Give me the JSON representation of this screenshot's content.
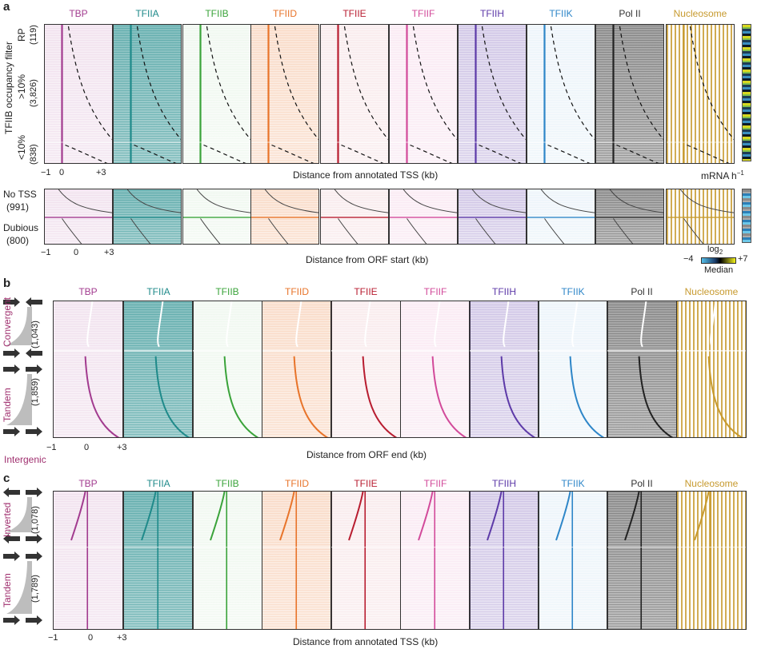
{
  "panels": {
    "a": {
      "letter": "a",
      "factors": [
        {
          "name": "TBP",
          "color": "#a23b8f"
        },
        {
          "name": "TFIIA",
          "color": "#1f8a8a"
        },
        {
          "name": "TFIIB",
          "color": "#3aa33a"
        },
        {
          "name": "TFIID",
          "color": "#e8742a"
        },
        {
          "name": "TFIIE",
          "color": "#b81d30"
        },
        {
          "name": "TFIIF",
          "color": "#d24a9a"
        },
        {
          "name": "TFIIH",
          "color": "#5d3aa8"
        },
        {
          "name": "TFIIK",
          "color": "#2e86c8"
        },
        {
          "name": "Pol II",
          "color": "#333333"
        },
        {
          "name": "Nucleosome",
          "color": "#c79a2e"
        }
      ],
      "side_title": "TFIIB occupancy filter",
      "groups_top": [
        {
          "label": "RP",
          "count": "(119)"
        },
        {
          "label": ">10%",
          "count": "(3,826)"
        },
        {
          "label": "<10%",
          "count": "(838)"
        }
      ],
      "groups_bottom": [
        {
          "label": "No TSS",
          "count": "(991)"
        },
        {
          "label": "Dubious",
          "count": "(800)"
        }
      ],
      "xticks_top": [
        "−1",
        "0",
        "+3"
      ],
      "xlabel_top": "Distance from annotated TSS (kb)",
      "xticks_bottom": [
        "−1",
        "0",
        "+3"
      ],
      "xlabel_bottom": "Distance from ORF start (kb)",
      "mrna_label": "mRNA h",
      "mrna_sup": "−1",
      "colorbar_title": "log",
      "colorbar_sub": "2",
      "colorbar_min": "−4",
      "colorbar_max": "+7",
      "colorbar_caption": "Median"
    },
    "b": {
      "letter": "b",
      "groups": [
        {
          "label": "Convergent",
          "count": "(1,043)"
        },
        {
          "label": "Tandem",
          "count": "(1,859)"
        }
      ],
      "intergenic": "Intergenic",
      "xticks": [
        "−1",
        "0",
        "+3"
      ],
      "xlabel": "Distance from ORF end (kb)"
    },
    "c": {
      "letter": "c",
      "groups": [
        {
          "label": "Inverted",
          "count": "(1,078)"
        },
        {
          "label": "Tandem",
          "count": "(1,789)"
        }
      ],
      "xticks": [
        "−1",
        "0",
        "+3"
      ],
      "xlabel": "Distance from annotated TSS (kb)"
    }
  },
  "chart_data": [
    {
      "type": "heatmap",
      "title": "",
      "xlabel": "Distance from annotated TSS (kb)",
      "x_ticks": [
        "−1",
        "0",
        "+3"
      ],
      "series": [
        {
          "name": "TBP"
        },
        {
          "name": "TFIIA"
        },
        {
          "name": "TFIIB"
        },
        {
          "name": "TFIID"
        },
        {
          "name": "TFIIE"
        },
        {
          "name": "TFIIF"
        },
        {
          "name": "TFIIH"
        },
        {
          "name": "TFIIK"
        },
        {
          "name": "Pol II"
        },
        {
          "name": "Nucleosome"
        }
      ],
      "row_groups": [
        "RP (119)",
        ">10% (3,826)",
        "<10% (838)"
      ]
    },
    {
      "type": "heatmap",
      "title": "",
      "xlabel": "Distance from ORF start (kb)",
      "x_ticks": [
        "−1",
        "0",
        "+3"
      ],
      "row_groups": [
        "No TSS (991)",
        "Dubious (800)"
      ]
    },
    {
      "type": "heatmap",
      "title": "",
      "xlabel": "Distance from ORF end (kb)",
      "x_ticks": [
        "−1",
        "0",
        "+3"
      ],
      "row_groups": [
        "Convergent (1,043)",
        "Tandem (1,859)"
      ]
    },
    {
      "type": "heatmap",
      "title": "",
      "xlabel": "Distance from annotated TSS (kb)",
      "x_ticks": [
        "−1",
        "0",
        "+3"
      ],
      "row_groups": [
        "Inverted (1,078)",
        "Tandem (1,789)"
      ]
    }
  ]
}
